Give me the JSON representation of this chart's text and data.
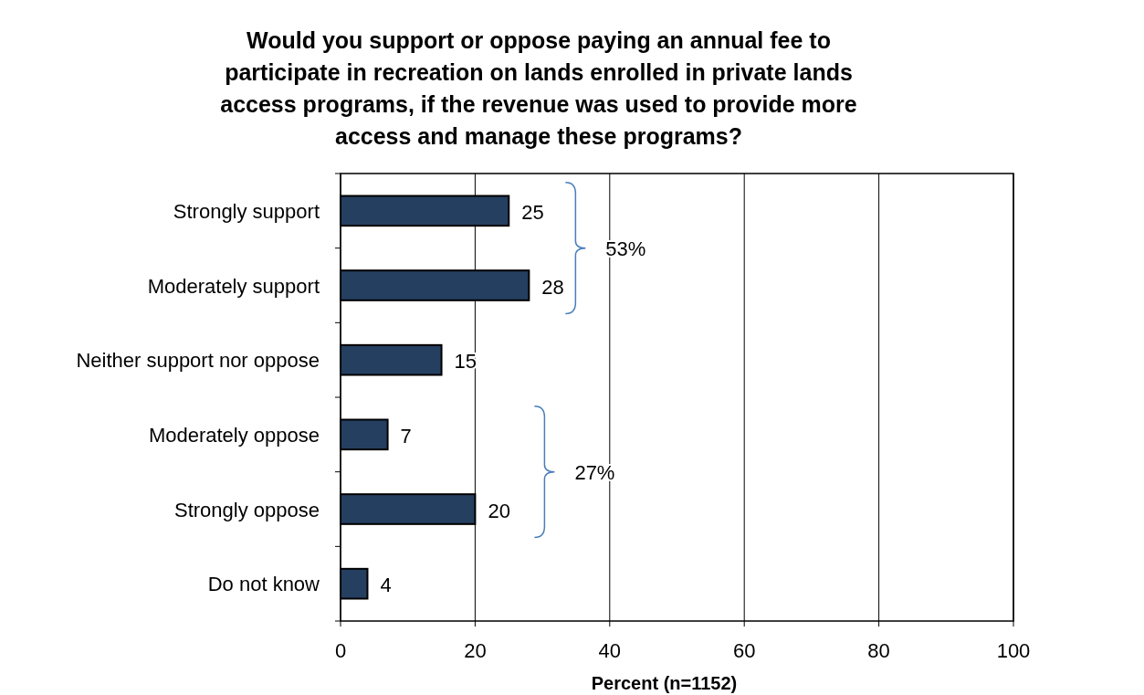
{
  "chart_data": {
    "type": "bar",
    "orientation": "horizontal",
    "title": "Would you support or oppose paying an annual fee to participate in recreation on lands enrolled in private lands access programs, if the revenue was used to provide more access and manage these programs?",
    "categories": [
      "Strongly support",
      "Moderately support",
      "Neither support nor oppose",
      "Moderately oppose",
      "Strongly oppose",
      "Do not know"
    ],
    "values": [
      25,
      28,
      15,
      7,
      20,
      4
    ],
    "color": "#243f60",
    "xlabel": "Percent (n=1152)",
    "xlim": [
      0,
      100
    ],
    "xticks": [
      0,
      20,
      40,
      60,
      80,
      100
    ],
    "grid": "x",
    "data_labels": true,
    "annotations": [
      "53%",
      "27%"
    ]
  }
}
